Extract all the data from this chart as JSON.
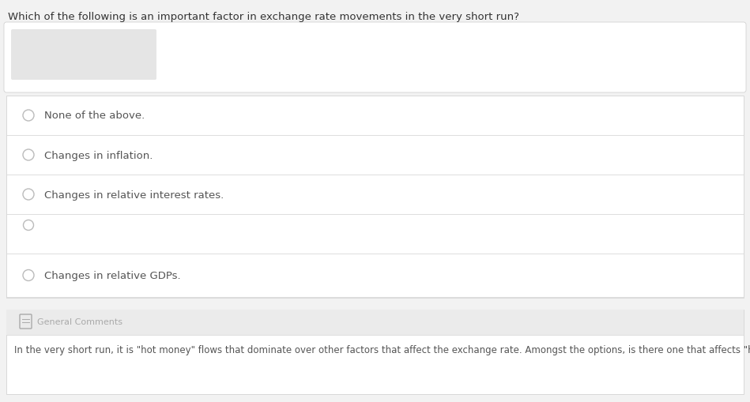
{
  "title": "Which of the following is an important factor in exchange rate movements in the very short run?",
  "options": [
    "None of the above.",
    "Changes in inflation.",
    "Changes in relative interest rates.",
    "Changes in relative GDPs."
  ],
  "general_comments_label": "General Comments",
  "general_comments_text": "In the very short run, it is \"hot money\" flows that dominate over other factors that affect the exchange rate. Amongst the options, is there one that affects \"hot money\" flows?",
  "bg_color": "#f2f2f2",
  "white": "#ffffff",
  "border_color": "#d8d8d8",
  "title_color": "#333333",
  "option_text_color": "#555555",
  "radio_stroke": "#bbbbbb",
  "gc_bg_color": "#ebebeb",
  "gc_label_color": "#aaaaaa",
  "gc_text_color": "#555555",
  "blur_rect_color": "#d0d0d0",
  "title_fontsize": 9.5,
  "option_fontsize": 9.5,
  "gc_label_fontsize": 8,
  "gc_text_fontsize": 8.5,
  "outer_border_color": "#cccccc",
  "outer_box_bg": "#f7f7f7"
}
